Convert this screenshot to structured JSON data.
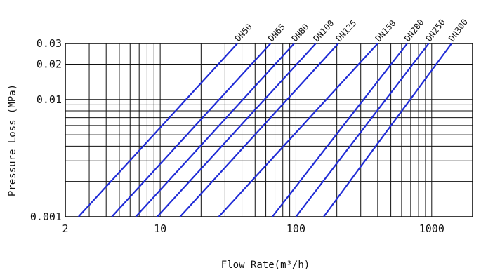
{
  "chart_data": {
    "type": "line",
    "title": "",
    "xlabel": "Flow Rate(m³/h)",
    "ylabel": "Pressure Loss (MPa)",
    "x_scale": "log",
    "y_scale": "log",
    "xlim": [
      2,
      2000
    ],
    "ylim": [
      0.001,
      0.03
    ],
    "grid": true,
    "x_tick_labels": [
      {
        "value": 2,
        "label": "2"
      },
      {
        "value": 10,
        "label": "10"
      },
      {
        "value": 100,
        "label": "100"
      },
      {
        "value": 1000,
        "label": "1000"
      }
    ],
    "y_tick_labels": [
      {
        "value": 0.001,
        "label": "0.001"
      },
      {
        "value": 0.01,
        "label": "0.01"
      },
      {
        "value": 0.02,
        "label": "0.02"
      },
      {
        "value": 0.03,
        "label": "0.03"
      }
    ],
    "x_gridlines": [
      2,
      3,
      4,
      5,
      6,
      7,
      8,
      9,
      10,
      20,
      30,
      40,
      50,
      60,
      70,
      80,
      90,
      100,
      200,
      300,
      400,
      500,
      600,
      700,
      800,
      900,
      1000,
      2000
    ],
    "y_gridlines": [
      0.001,
      0.0015,
      0.002,
      0.003,
      0.004,
      0.005,
      0.006,
      0.007,
      0.008,
      0.009,
      0.01,
      0.02,
      0.03
    ],
    "series": [
      {
        "name": "DN50",
        "x": [
          2.5,
          37
        ],
        "y": [
          0.001,
          0.03
        ]
      },
      {
        "name": "DN65",
        "x": [
          4.4,
          65
        ],
        "y": [
          0.001,
          0.03
        ]
      },
      {
        "name": "DN80",
        "x": [
          6.6,
          97
        ],
        "y": [
          0.001,
          0.03
        ]
      },
      {
        "name": "DN100",
        "x": [
          9.5,
          140
        ],
        "y": [
          0.001,
          0.03
        ]
      },
      {
        "name": "DN125",
        "x": [
          14,
          205
        ],
        "y": [
          0.001,
          0.03
        ]
      },
      {
        "name": "DN150",
        "x": [
          27,
          400
        ],
        "y": [
          0.001,
          0.03
        ]
      },
      {
        "name": "DN200",
        "x": [
          67,
          660
        ],
        "y": [
          0.001,
          0.03
        ]
      },
      {
        "name": "DN250",
        "x": [
          100,
          950
        ],
        "y": [
          0.001,
          0.03
        ]
      },
      {
        "name": "DN300",
        "x": [
          160,
          1400
        ],
        "y": [
          0.001,
          0.03
        ]
      }
    ],
    "colors": {
      "line": "#1f2bd6",
      "grid": "#111111"
    }
  }
}
